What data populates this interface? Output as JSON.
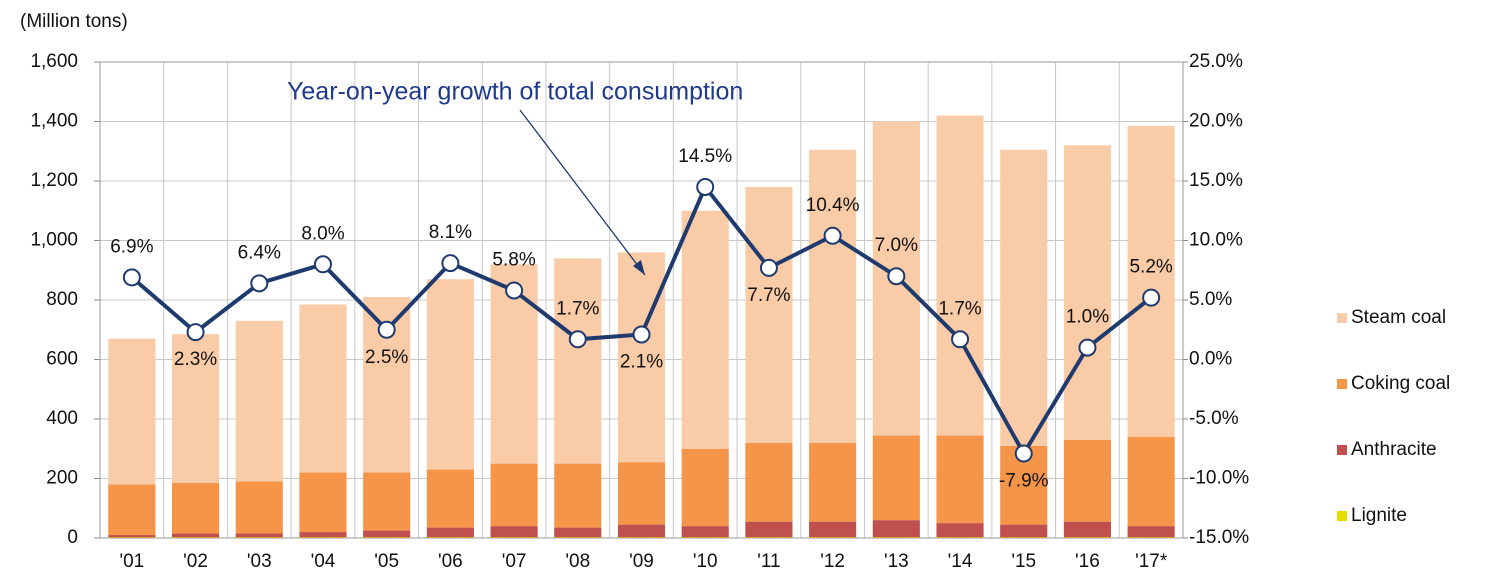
{
  "chart_data": {
    "type": "stacked-bar-line",
    "y_axis_label": "(Million tons)",
    "annotation": "Year-on-year growth of total consumption",
    "categories": [
      "'01",
      "'02",
      "'03",
      "'04",
      "'05",
      "'06",
      "'07",
      "'08",
      "'09",
      "'10",
      "'11",
      "'12",
      "'13",
      "'14",
      "'15",
      "'16",
      "'17*"
    ],
    "series": [
      {
        "name": "Lignite",
        "color": "#e6dc00",
        "values": [
          2,
          2,
          2,
          2,
          2,
          2,
          2,
          2,
          2,
          2,
          2,
          2,
          2,
          2,
          2,
          2,
          2
        ]
      },
      {
        "name": "Anthracite",
        "color": "#c0504d",
        "values": [
          8,
          13,
          13,
          18,
          23,
          33,
          38,
          33,
          43,
          38,
          53,
          53,
          58,
          48,
          43,
          53,
          38
        ]
      },
      {
        "name": "Coking coal",
        "color": "#f4954a",
        "values": [
          170,
          170,
          175,
          200,
          195,
          195,
          210,
          215,
          210,
          260,
          265,
          265,
          285,
          295,
          265,
          275,
          300
        ]
      },
      {
        "name": "Steam coal",
        "color": "#f9cba6",
        "values": [
          490,
          500,
          540,
          565,
          590,
          640,
          670,
          690,
          705,
          800,
          860,
          985,
          1055,
          1075,
          995,
          990,
          1045
        ]
      },
      {
        "name": "Year-on-year growth",
        "type": "line",
        "axis": "y2",
        "color": "#1f3a6e",
        "values": [
          6.9,
          2.3,
          6.4,
          8.0,
          2.5,
          8.1,
          5.8,
          1.7,
          2.1,
          14.5,
          7.7,
          10.4,
          7.0,
          1.7,
          -7.9,
          1.0,
          5.2
        ],
        "value_labels": [
          "6.9%",
          "2.3%",
          "6.4%",
          "8.0%",
          "2.5%",
          "8.1%",
          "5.8%",
          "1.7%",
          "2.1%",
          "14.5%",
          "7.7%",
          "10.4%",
          "7.0%",
          "1.7%",
          "-7.9%",
          "1.0%",
          "5.2%"
        ]
      }
    ],
    "ylim": [
      0,
      1600
    ],
    "yticks": [
      0,
      200,
      400,
      600,
      800,
      {
        "value": 1000,
        "label": "1,000"
      },
      {
        "value": 1200,
        "label": "1,200"
      },
      {
        "value": 1400,
        "label": "1,400"
      },
      {
        "value": 1600,
        "label": "1,600"
      }
    ],
    "y2lim": [
      -15,
      25
    ],
    "y2ticks": [
      {
        "value": -15,
        "label": "-15.0%"
      },
      {
        "value": -10,
        "label": "-10.0%"
      },
      {
        "value": -5,
        "label": "-5.0%"
      },
      {
        "value": 0,
        "label": "0.0%"
      },
      {
        "value": 5,
        "label": "5.0%"
      },
      {
        "value": 10,
        "label": "10.0%"
      },
      {
        "value": 15,
        "label": "15.0%"
      },
      {
        "value": 20,
        "label": "20.0%"
      },
      {
        "value": 25,
        "label": "25.0%"
      }
    ],
    "grid": true,
    "legend": "right"
  }
}
